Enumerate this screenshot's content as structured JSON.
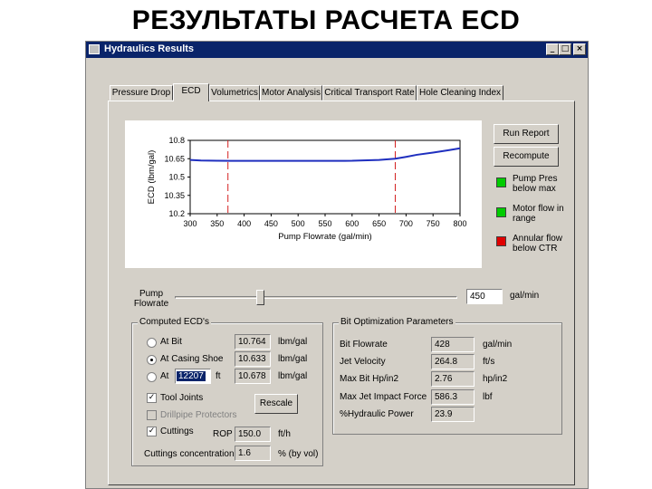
{
  "slide_title": "РЕЗУЛЬТАТЫ РАСЧЕТА ECD",
  "window": {
    "title": "Hydraulics Results",
    "controls": {
      "minimize": "_",
      "maximize": "□",
      "close": "×"
    }
  },
  "tabs": [
    {
      "label": "Pressure Drop",
      "active": false
    },
    {
      "label": "ECD",
      "active": true
    },
    {
      "label": "Volumetrics",
      "active": false
    },
    {
      "label": "Motor Analysis",
      "active": false
    },
    {
      "label": "Critical Transport Rate",
      "active": false
    },
    {
      "label": "Hole Cleaning Index",
      "active": false
    }
  ],
  "chart_data": {
    "type": "line",
    "xlabel": "Pump Flowrate (gal/min)",
    "ylabel": "ECD (lbm/gal)",
    "xlim": [
      300,
      800
    ],
    "ylim": [
      10.2,
      10.8
    ],
    "x_ticks": [
      "300",
      "350",
      "400",
      "450",
      "500",
      "550",
      "600",
      "650",
      "700",
      "750",
      "800"
    ],
    "y_ticks": [
      "10.8",
      "10.65",
      "10.5",
      "10.35",
      "10.2"
    ],
    "series": [
      {
        "x": [
          300,
          320,
          350,
          400,
          450,
          500,
          550,
          600,
          650,
          680,
          700,
          720,
          750,
          780,
          800
        ],
        "y": [
          10.64,
          10.635,
          10.633,
          10.632,
          10.632,
          10.632,
          10.632,
          10.633,
          10.64,
          10.65,
          10.665,
          10.682,
          10.7,
          10.72,
          10.735
        ],
        "color": "#1f2fbf"
      }
    ],
    "markers": [
      {
        "x": 370,
        "color": "#d42020"
      },
      {
        "x": 680,
        "color": "#d42020"
      }
    ]
  },
  "buttons": {
    "run_report": "Run Report",
    "recompute": "Recompute",
    "rescale": "Rescale"
  },
  "indicators": [
    {
      "label": "Pump Pres below max",
      "color": "#00cc00"
    },
    {
      "label": "Motor flow in range",
      "color": "#00cc00"
    },
    {
      "label": "Annular flow below CTR",
      "color": "#e00000"
    }
  ],
  "slider": {
    "label": "Pump Flowrate",
    "value": "450",
    "unit": "gal/min",
    "fraction": 0.3
  },
  "computed_ecds": {
    "title": "Computed ECD's",
    "rows": [
      {
        "label": "At Bit",
        "value": "10.764",
        "unit": "lbm/gal",
        "selected": false
      },
      {
        "label": "At Casing Shoe",
        "value": "10.633",
        "unit": "lbm/gal",
        "selected": true
      },
      {
        "label": "At",
        "depth": "12207",
        "depth_unit": "ft",
        "value": "10.678",
        "unit": "lbm/gal",
        "selected": false
      }
    ],
    "tool_joints": "Tool Joints",
    "drillpipe_protectors": "Drillpipe Protectors",
    "cuttings": "Cuttings",
    "rop_label": "ROP",
    "rop_value": "150.0",
    "rop_unit": "ft/h",
    "conc_label": "Cuttings concentration",
    "conc_value": "1.6",
    "conc_unit": "% (by vol)"
  },
  "bit_params": {
    "title": "Bit Optimization Parameters",
    "rows": [
      {
        "label": "Bit Flowrate",
        "value": "428",
        "unit": "gal/min"
      },
      {
        "label": "Jet Velocity",
        "value": "264.8",
        "unit": "ft/s"
      },
      {
        "label": "Max Bit Hp/in2",
        "value": "2.76",
        "unit": "hp/in2"
      },
      {
        "label": "Max Jet Impact Force",
        "value": "586.3",
        "unit": "lbf"
      },
      {
        "label": "%Hydraulic Power",
        "value": "23.9",
        "unit": ""
      }
    ]
  }
}
